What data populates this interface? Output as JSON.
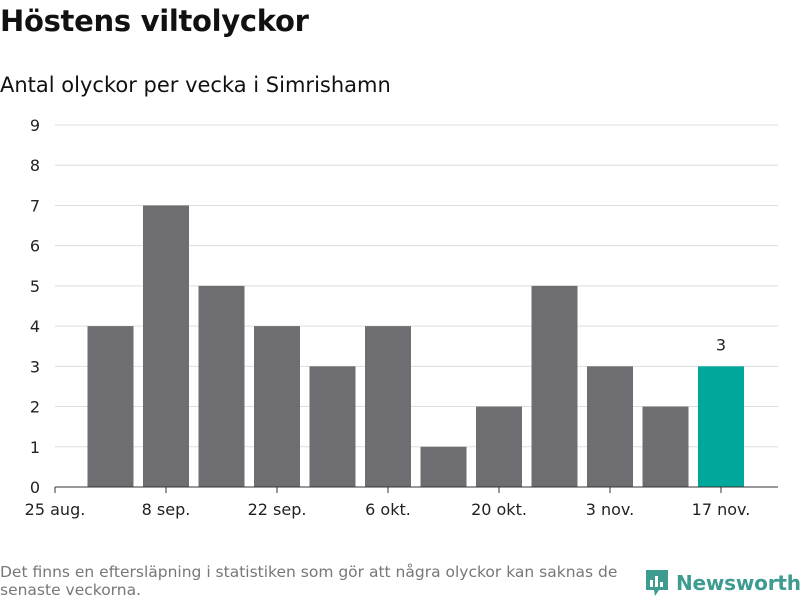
{
  "header": {
    "title": "Höstens viltolyckor",
    "subtitle": "Antal olyckor per vecka i Simrishamn"
  },
  "footer": {
    "note": "Det finns en eftersläpning i statistiken som gör att några olyckor kan saknas de senaste veckorna.",
    "brand": "Newsworthy",
    "brand_icon": "newsworthy-logo-icon"
  },
  "colors": {
    "bar": "#6e6d72",
    "highlight": "#00a79b",
    "grid": "#dddddd",
    "brand": "#3d9b8f"
  },
  "chart_data": {
    "type": "bar",
    "title": "Höstens viltolyckor",
    "subtitle": "Antal olyckor per vecka i Simrishamn",
    "xlabel": "",
    "ylabel": "",
    "ylim": [
      0,
      9
    ],
    "yticks": [
      0,
      1,
      2,
      3,
      4,
      5,
      6,
      7,
      8,
      9
    ],
    "grid": true,
    "x_tick_labels": [
      "25 aug.",
      "8 sep.",
      "22 sep.",
      "6 okt.",
      "20 okt.",
      "3 nov.",
      "17 nov."
    ],
    "values": [
      4,
      7,
      5,
      4,
      3,
      4,
      1,
      2,
      5,
      3,
      2,
      3
    ],
    "highlight_index": 11,
    "data_labels": [
      {
        "index": 11,
        "text": "3"
      }
    ]
  }
}
